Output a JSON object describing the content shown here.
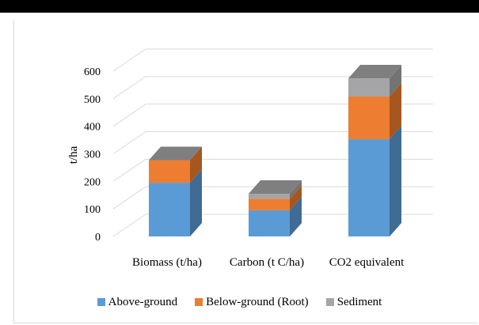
{
  "chart_data": {
    "type": "bar",
    "stacked": true,
    "three_d": true,
    "title": "",
    "xlabel": "",
    "ylabel": "t/ha",
    "ylim": [
      0,
      600
    ],
    "yticks": [
      0,
      100,
      200,
      300,
      400,
      500,
      600
    ],
    "grid": true,
    "legend_position": "bottom",
    "categories": [
      "Biomass (t/ha)",
      "Carbon (t C/ha)",
      "CO2 equivalent"
    ],
    "series": [
      {
        "name": "Above-ground",
        "values": [
          195,
          95,
          353
        ],
        "color": "#5b9bd5",
        "side_color": "#3f6b94"
      },
      {
        "name": "Below-ground (Root)",
        "values": [
          82,
          42,
          155
        ],
        "color": "#ed7d31",
        "side_color": "#a5571f"
      },
      {
        "name": "Sediment",
        "values": [
          0,
          18,
          66
        ],
        "color": "#a5a5a5",
        "side_color": "#737373"
      }
    ],
    "top_color": "#7f7f7f"
  }
}
